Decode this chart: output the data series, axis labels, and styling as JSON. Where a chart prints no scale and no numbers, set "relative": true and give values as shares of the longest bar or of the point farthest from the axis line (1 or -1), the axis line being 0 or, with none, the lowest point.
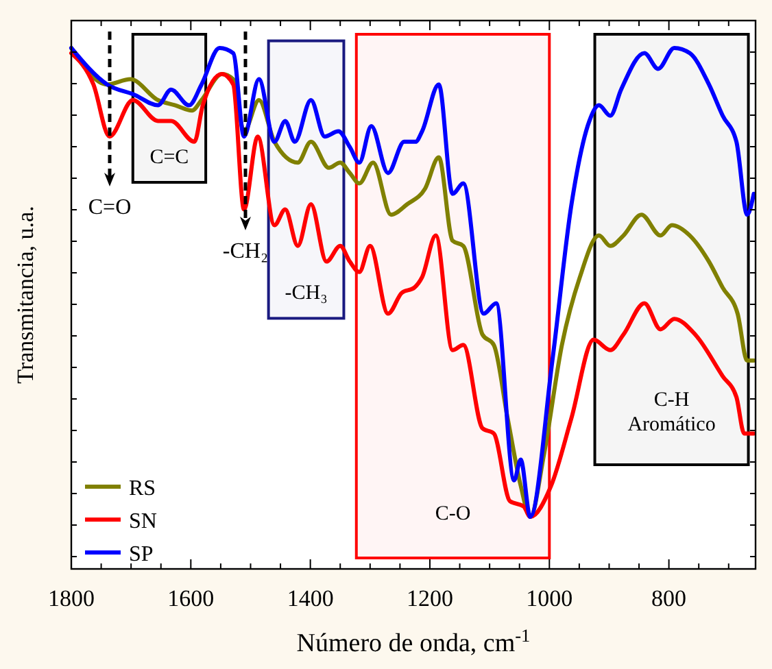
{
  "chart_data": {
    "type": "line",
    "relative": true,
    "xlabel": "Número de onda, cm$^{-1}$",
    "ylabel": "Transmitancia, u.a.",
    "xlim": [
      1800,
      655
    ],
    "xticks": [
      1800,
      {
        "value": 1750,
        "label": null
      },
      {
        "value": 1700,
        "label": null
      },
      {
        "value": 1650,
        "label": null
      },
      1600,
      {
        "value": 1550,
        "label": null
      },
      {
        "value": 1500,
        "label": null
      },
      {
        "value": 1450,
        "label": null
      },
      1400,
      {
        "value": 1350,
        "label": null
      },
      {
        "value": 1300,
        "label": null
      },
      {
        "value": 1250,
        "label": null
      },
      1200,
      {
        "value": 1150,
        "label": null
      },
      {
        "value": 1100,
        "label": null
      },
      {
        "value": 1050,
        "label": null
      },
      1000,
      {
        "value": 950,
        "label": null
      },
      {
        "value": 900,
        "label": null
      },
      {
        "value": 850,
        "label": null
      },
      800,
      {
        "value": 750,
        "label": null
      },
      {
        "value": 700,
        "label": null
      }
    ],
    "tick_labels": "x",
    "legend": "bottom left",
    "grid": false,
    "line_style": "solid",
    "series": [
      {
        "name": "RS",
        "color": "#808000",
        "x": [
          1800,
          1740,
          1701,
          1655,
          1626,
          1598,
          1582,
          1548,
          1529,
          1511,
          1486,
          1460,
          1421,
          1399,
          1369,
          1350,
          1334,
          1318,
          1295,
          1265,
          1238,
          1208,
          1185,
          1162,
          1144,
          1112,
          1093,
          1070,
          1048,
          1032,
          1009,
          979,
          949,
          917,
          898,
          876,
          846,
          814,
          795,
          765,
          733,
          710,
          685,
          669,
          658
        ],
        "values": [
          1.0,
          0.93,
          0.94,
          0.9,
          0.89,
          0.88,
          0.9,
          0.95,
          0.94,
          0.84,
          0.9,
          0.82,
          0.78,
          0.82,
          0.77,
          0.78,
          0.76,
          0.74,
          0.78,
          0.68,
          0.7,
          0.73,
          0.79,
          0.63,
          0.62,
          0.45,
          0.43,
          0.29,
          0.16,
          0.1,
          0.22,
          0.43,
          0.56,
          0.64,
          0.62,
          0.64,
          0.68,
          0.64,
          0.66,
          0.64,
          0.59,
          0.54,
          0.49,
          0.4,
          0.4
        ]
      },
      {
        "name": "SN",
        "color": "#ff0000",
        "x": [
          1800,
          1763,
          1736,
          1697,
          1655,
          1633,
          1594,
          1580,
          1548,
          1529,
          1511,
          1488,
          1460,
          1442,
          1421,
          1399,
          1373,
          1350,
          1334,
          1318,
          1300,
          1270,
          1247,
          1226,
          1213,
          1190,
          1162,
          1144,
          1112,
          1093,
          1066,
          1043,
          1032,
          997,
          963,
          926,
          898,
          876,
          841,
          814,
          791,
          756,
          710,
          687,
          674,
          658
        ],
        "values": [
          0.99,
          0.93,
          0.83,
          0.9,
          0.86,
          0.86,
          0.82,
          0.89,
          0.95,
          0.93,
          0.69,
          0.83,
          0.66,
          0.69,
          0.62,
          0.7,
          0.59,
          0.62,
          0.59,
          0.57,
          0.62,
          0.49,
          0.53,
          0.54,
          0.56,
          0.64,
          0.42,
          0.43,
          0.27,
          0.26,
          0.13,
          0.12,
          0.1,
          0.16,
          0.29,
          0.44,
          0.42,
          0.45,
          0.51,
          0.46,
          0.48,
          0.45,
          0.37,
          0.33,
          0.26,
          0.26
        ]
      },
      {
        "name": "SP",
        "color": "#0000ff",
        "x": [
          1800,
          1740,
          1694,
          1655,
          1633,
          1603,
          1582,
          1552,
          1529,
          1511,
          1486,
          1460,
          1442,
          1426,
          1399,
          1376,
          1353,
          1334,
          1318,
          1298,
          1270,
          1243,
          1224,
          1213,
          1185,
          1162,
          1144,
          1110,
          1089,
          1059,
          1048,
          1032,
          995,
          963,
          933,
          917,
          898,
          880,
          841,
          818,
          791,
          765,
          733,
          710,
          687,
          669,
          658
        ],
        "values": [
          1.0,
          0.93,
          0.91,
          0.89,
          0.92,
          0.89,
          0.93,
          1.0,
          0.99,
          0.83,
          0.94,
          0.82,
          0.86,
          0.82,
          0.9,
          0.83,
          0.84,
          0.81,
          0.78,
          0.85,
          0.76,
          0.82,
          0.82,
          0.84,
          0.93,
          0.72,
          0.74,
          0.49,
          0.51,
          0.17,
          0.21,
          0.1,
          0.4,
          0.7,
          0.86,
          0.89,
          0.87,
          0.92,
          0.99,
          0.96,
          1.0,
          0.99,
          0.93,
          0.87,
          0.82,
          0.68,
          0.72
        ]
      }
    ],
    "bands": [
      {
        "axis": "x",
        "from": 1697,
        "to": 1575,
        "label": "C=C",
        "color": "#000000"
      },
      {
        "axis": "x",
        "from": 1470,
        "to": 1344,
        "label": "-CH₃",
        "color": "#1a1a80"
      },
      {
        "axis": "x",
        "from": 1323,
        "to": 1000,
        "label": "C-O",
        "color": "#ff0000"
      },
      {
        "axis": "x",
        "from": 924,
        "to": 667,
        "label": "C-H\nAromático",
        "color": "#000000"
      }
    ],
    "annotations": [
      "C=O",
      "-CH₂"
    ]
  }
}
